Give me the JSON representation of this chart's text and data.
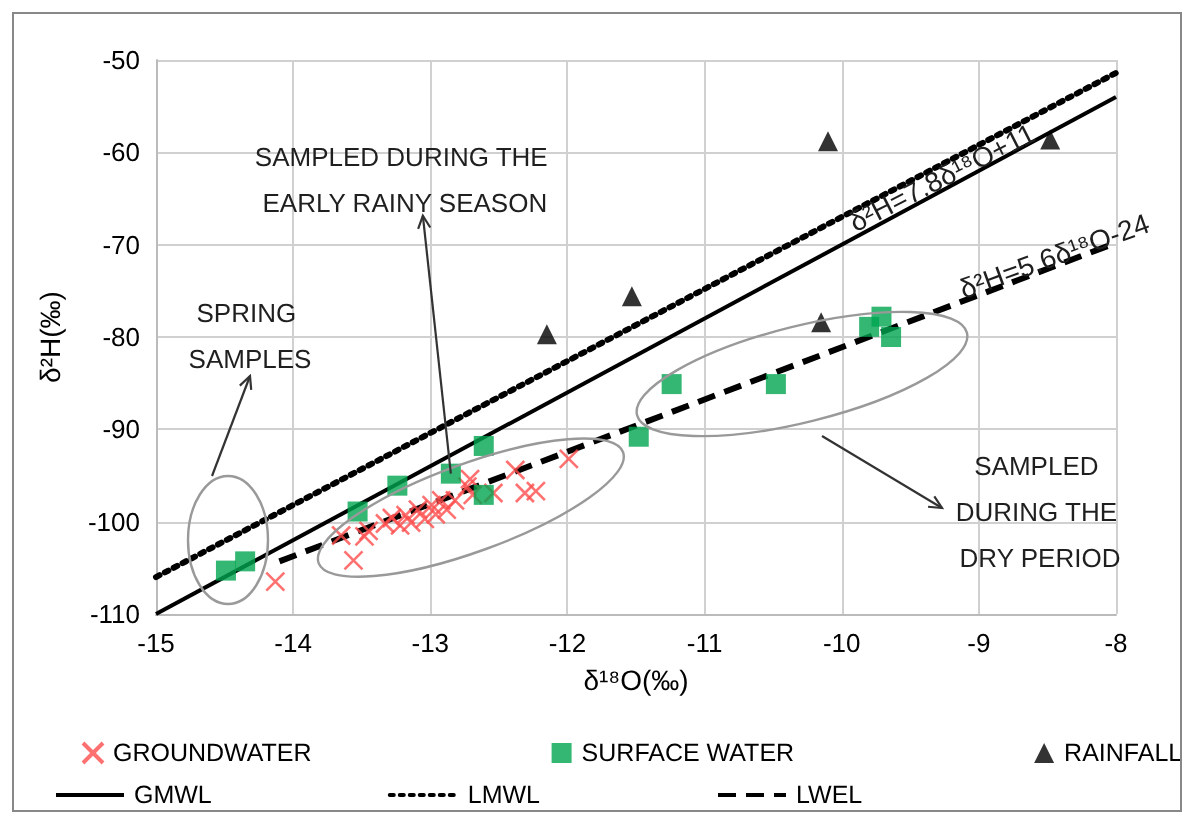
{
  "chart_data": {
    "type": "scatter",
    "xlabel": "δ¹⁸O(‰)",
    "ylabel": "δ²H(‰)",
    "xlim": [
      -15,
      -8
    ],
    "xticks": [
      -15,
      -14,
      -13,
      -12,
      -11,
      -10,
      -9,
      -8
    ],
    "ylim": [
      -110,
      -50
    ],
    "yticks": [
      -110,
      -100,
      -90,
      -80,
      -70,
      -60,
      -50
    ],
    "grid": true,
    "legend": "bottom",
    "annotations": [
      "SPRING SAMPLES",
      {
        "text": "SAMPLED DURING THE EARLY RAINY SEASON",
        "x": -12.85,
        "y": -94.8
      },
      {
        "text": "δ²H=7.8δ¹⁸O+11",
        "x": -9.27,
        "y": -62.7
      },
      {
        "text": "δ²H=5.6δ¹⁸O-24",
        "x": -8.45,
        "y": -71.2
      },
      "SAMPLED DURING THE DRY PERIOD"
    ],
    "series": [
      {
        "name": "GROUNDWATER",
        "marker": "cross",
        "color": "#ff4d4d",
        "x": [
          -14.13,
          -13.65,
          -13.56,
          -13.48,
          -13.45,
          -13.33,
          -13.28,
          -13.22,
          -13.18,
          -13.14,
          -13.09,
          -13.04,
          -12.99,
          -12.96,
          -12.92,
          -12.88,
          -12.82,
          -12.73,
          -12.71,
          -12.69,
          -12.54,
          -12.38,
          -12.31,
          -12.23,
          -11.99
        ],
        "values": [
          -106.5,
          -101.5,
          -104.2,
          -101.6,
          -101,
          -100.2,
          -99.6,
          -100.4,
          -99.3,
          -100.1,
          -98.7,
          -99.7,
          -98.2,
          -99.2,
          -97.7,
          -98.7,
          -97.7,
          -96.2,
          -95.4,
          -97.1,
          -96.9,
          -94.4,
          -96.9,
          -96.7,
          -93.2
        ]
      },
      {
        "name": "SURFACE WATER",
        "marker": "square",
        "color": "#00a550",
        "x": [
          -14.49,
          -14.35,
          -13.53,
          -13.24,
          -12.85,
          -12.61,
          -12.61,
          -11.48,
          -11.24,
          -10.48,
          -9.8,
          -9.71,
          -9.64
        ],
        "values": [
          -105.3,
          -104.3,
          -98.9,
          -96.1,
          -94.8,
          -91.8,
          -97.1,
          -90.8,
          -85.1,
          -85.1,
          -78.9,
          -77.8,
          -80
        ]
      },
      {
        "name": "RAINFALL",
        "marker": "triangle",
        "color": "#000000",
        "x": [
          -12.15,
          -11.53,
          -10.1,
          -10.15,
          -8.48
        ],
        "values": [
          -79.7,
          -75.6,
          -58.8,
          -78.4,
          -58.6
        ]
      },
      {
        "name": "GMWL",
        "type": "line",
        "line_style": "solid",
        "marker": "none",
        "color": "#000000",
        "x": [
          -15,
          -8
        ],
        "values": [
          -110,
          -54
        ]
      },
      {
        "name": "LMWL",
        "type": "line",
        "line_style": "dotted",
        "marker": "none",
        "color": "#000000",
        "x": [
          -15,
          -8
        ],
        "values": [
          -106,
          -51.4
        ]
      },
      {
        "name": "LWEL",
        "type": "line",
        "line_style": "dashed",
        "marker": "none",
        "color": "#000000",
        "x": [
          -14.1,
          -8
        ],
        "values": [
          -104.3,
          -69.8
        ]
      }
    ]
  }
}
